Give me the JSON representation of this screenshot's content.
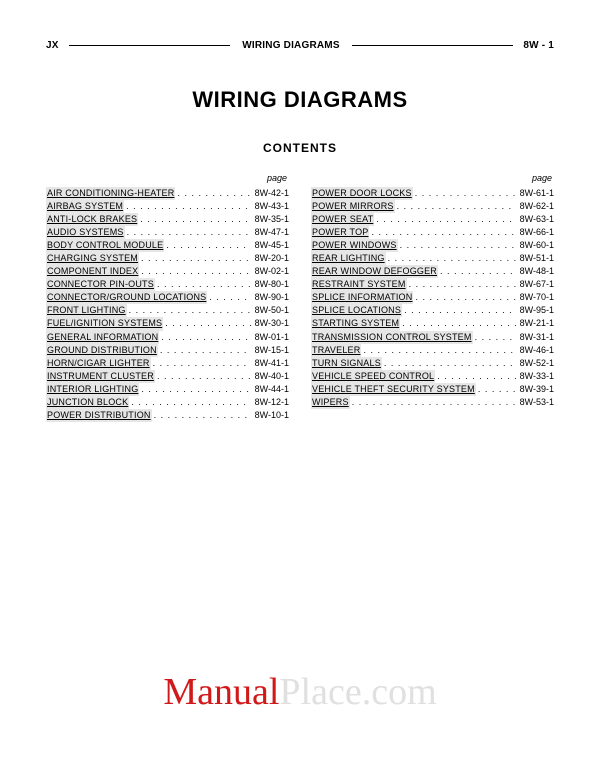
{
  "header": {
    "left": "JX",
    "center": "WIRING DIAGRAMS",
    "right": "8W - 1"
  },
  "title": "WIRING DIAGRAMS",
  "contents_label": "CONTENTS",
  "page_word": "page",
  "toc_left": [
    {
      "label": "AIR CONDITIONING-HEATER",
      "page": "8W-42-1"
    },
    {
      "label": "AIRBAG SYSTEM",
      "page": "8W-43-1"
    },
    {
      "label": "ANTI-LOCK BRAKES",
      "page": "8W-35-1"
    },
    {
      "label": "AUDIO SYSTEMS",
      "page": "8W-47-1"
    },
    {
      "label": "BODY CONTROL MODULE",
      "page": "8W-45-1"
    },
    {
      "label": "CHARGING SYSTEM",
      "page": "8W-20-1"
    },
    {
      "label": "COMPONENT INDEX",
      "page": "8W-02-1"
    },
    {
      "label": "CONNECTOR PIN-OUTS",
      "page": "8W-80-1"
    },
    {
      "label": "CONNECTOR/GROUND LOCATIONS",
      "page": "8W-90-1"
    },
    {
      "label": "FRONT LIGHTING",
      "page": "8W-50-1"
    },
    {
      "label": "FUEL/IGNITION SYSTEMS",
      "page": "8W-30-1"
    },
    {
      "label": "GENERAL INFORMATION",
      "page": "8W-01-1"
    },
    {
      "label": "GROUND DISTRIBUTION",
      "page": "8W-15-1"
    },
    {
      "label": "HORN/CIGAR LIGHTER",
      "page": "8W-41-1"
    },
    {
      "label": "INSTRUMENT CLUSTER",
      "page": "8W-40-1"
    },
    {
      "label": "INTERIOR LIGHTING",
      "page": "8W-44-1"
    },
    {
      "label": "JUNCTION BLOCK",
      "page": "8W-12-1"
    },
    {
      "label": "POWER DISTRIBUTION",
      "page": "8W-10-1"
    }
  ],
  "toc_right": [
    {
      "label": "POWER DOOR LOCKS",
      "page": "8W-61-1"
    },
    {
      "label": "POWER MIRRORS",
      "page": "8W-62-1"
    },
    {
      "label": "POWER SEAT",
      "page": "8W-63-1"
    },
    {
      "label": "POWER TOP",
      "page": "8W-66-1"
    },
    {
      "label": "POWER WINDOWS",
      "page": "8W-60-1"
    },
    {
      "label": "REAR LIGHTING",
      "page": "8W-51-1"
    },
    {
      "label": "REAR WINDOW DEFOGGER",
      "page": "8W-48-1"
    },
    {
      "label": "RESTRAINT SYSTEM",
      "page": "8W-67-1"
    },
    {
      "label": "SPLICE INFORMATION",
      "page": "8W-70-1"
    },
    {
      "label": "SPLICE LOCATIONS",
      "page": "8W-95-1"
    },
    {
      "label": "STARTING SYSTEM",
      "page": "8W-21-1"
    },
    {
      "label": "TRANSMISSION CONTROL SYSTEM",
      "page": "8W-31-1"
    },
    {
      "label": "TRAVELER",
      "page": "8W-46-1"
    },
    {
      "label": "TURN SIGNALS",
      "page": "8W-52-1"
    },
    {
      "label": "VEHICLE SPEED CONTROL",
      "page": "8W-33-1"
    },
    {
      "label": "VEHICLE THEFT SECURITY SYSTEM",
      "page": "8W-39-1"
    },
    {
      "label": "WIPERS",
      "page": "8W-53-1"
    }
  ],
  "watermark": {
    "part1": "Manual",
    "part2": "Place.com",
    "color_primary": "#d11919",
    "color_secondary": "#e0e0e0"
  }
}
